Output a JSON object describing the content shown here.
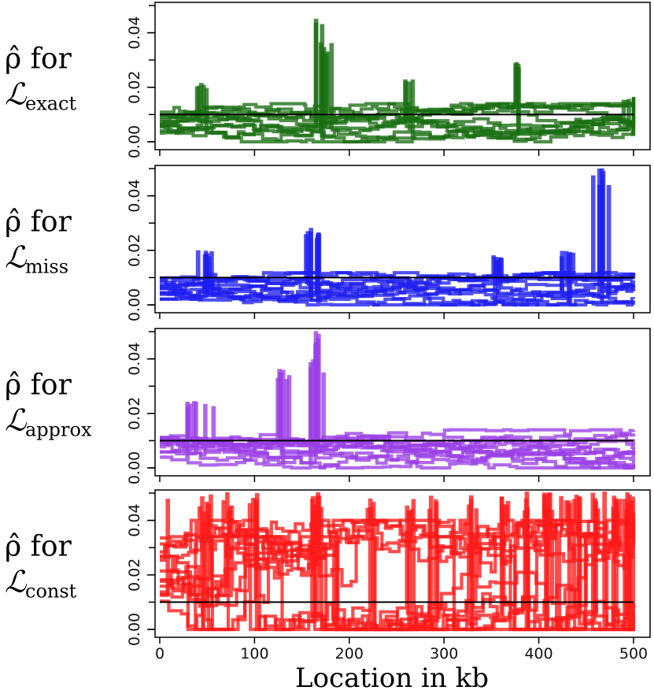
{
  "chart_data": {
    "type": "line",
    "xlabel": "Location in kb",
    "xlim": [
      0,
      500
    ],
    "x_ticks": [
      0,
      100,
      200,
      300,
      400,
      500
    ],
    "x_tick_labels": [
      "0",
      "100",
      "200",
      "300",
      "400",
      "500"
    ],
    "ylim": [
      0,
      0.05
    ],
    "y_ticks": [
      0.0,
      0.02,
      0.04
    ],
    "y_tick_labels": [
      "0.00",
      "0.02",
      "0.04"
    ],
    "reference_value": 0.01,
    "reference_color": "#000000",
    "panels": [
      {
        "id": "exact",
        "label_main": "ρ̂ for",
        "label_script": "ℒ",
        "label_sub": "exact",
        "color": "#1a6e12",
        "n_traces": 12,
        "base_range": [
          0.003,
          0.012
        ],
        "noise": 0.002,
        "spikes": [
          [
            45,
            0.021
          ],
          [
            158,
            0.014
          ],
          [
            170,
            0.05
          ],
          [
            172,
            0.036
          ],
          [
            262,
            0.024
          ],
          [
            378,
            0.03
          ],
          [
            495,
            0.017
          ]
        ]
      },
      {
        "id": "miss",
        "label_main": "ρ̂ for",
        "label_script": "ℒ",
        "label_sub": "miss",
        "color": "#1e1ef0",
        "n_traces": 12,
        "base_range": [
          0.002,
          0.01
        ],
        "noise": 0.0018,
        "spikes": [
          [
            48,
            0.02
          ],
          [
            162,
            0.028
          ],
          [
            355,
            0.018
          ],
          [
            428,
            0.02
          ],
          [
            466,
            0.05
          ]
        ]
      },
      {
        "id": "approx",
        "label_main": "ρ̂ for",
        "label_script": "ℒ",
        "label_sub": "approx",
        "color": "#9a3fe6",
        "n_traces": 12,
        "base_range": [
          0.002,
          0.012
        ],
        "noise": 0.002,
        "spikes": [
          [
            35,
            0.025
          ],
          [
            50,
            0.024
          ],
          [
            128,
            0.036
          ],
          [
            163,
            0.04
          ],
          [
            170,
            0.05
          ]
        ]
      },
      {
        "id": "const",
        "label_main": "ρ̂ for",
        "label_script": "ℒ",
        "label_sub": "const",
        "color": "#ff1a1a",
        "n_traces": 14,
        "base_range": [
          0.01,
          0.034
        ],
        "noise": 0.006,
        "spikes": [
          [
            5,
            0.05
          ],
          [
            48,
            0.05
          ],
          [
            72,
            0.05
          ],
          [
            97,
            0.05
          ],
          [
            165,
            0.05
          ],
          [
            222,
            0.05
          ],
          [
            262,
            0.05
          ],
          [
            288,
            0.05
          ],
          [
            330,
            0.05
          ],
          [
            362,
            0.05
          ],
          [
            385,
            0.05
          ],
          [
            410,
            0.05
          ],
          [
            428,
            0.05
          ],
          [
            438,
            0.05
          ],
          [
            462,
            0.05
          ],
          [
            480,
            0.05
          ],
          [
            495,
            0.05
          ]
        ]
      }
    ]
  }
}
